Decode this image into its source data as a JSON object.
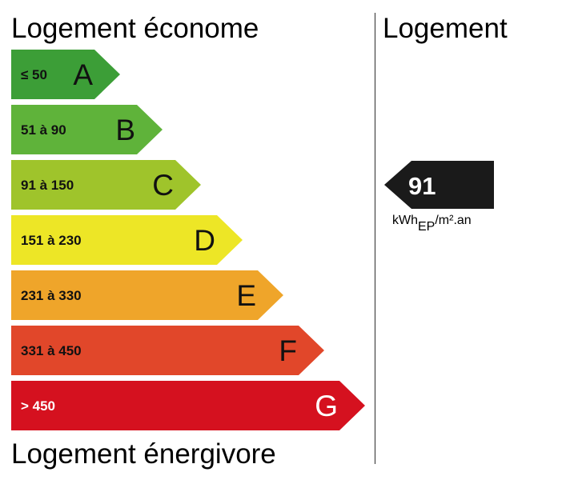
{
  "header": {
    "top": "Logement économe",
    "bottom": "Logement énergivore",
    "right": "Logement"
  },
  "bands": [
    {
      "range": "≤ 50",
      "letter": "A",
      "color": "#3c9e37"
    },
    {
      "range": "51 à 90",
      "letter": "B",
      "color": "#5fb33a"
    },
    {
      "range": "91 à 150",
      "letter": "C",
      "color": "#9fc42b"
    },
    {
      "range": "151 à 230",
      "letter": "D",
      "color": "#ede626"
    },
    {
      "range": "231 à 330",
      "letter": "E",
      "color": "#efa52a"
    },
    {
      "range": "331 à 450",
      "letter": "F",
      "color": "#e1472a"
    },
    {
      "range": "> 450",
      "letter": "G",
      "color": "#d5111f"
    }
  ],
  "indicator": {
    "value": "91",
    "unit": {
      "main": "kWh",
      "sub": "EP",
      "rest": "/m².an"
    }
  }
}
